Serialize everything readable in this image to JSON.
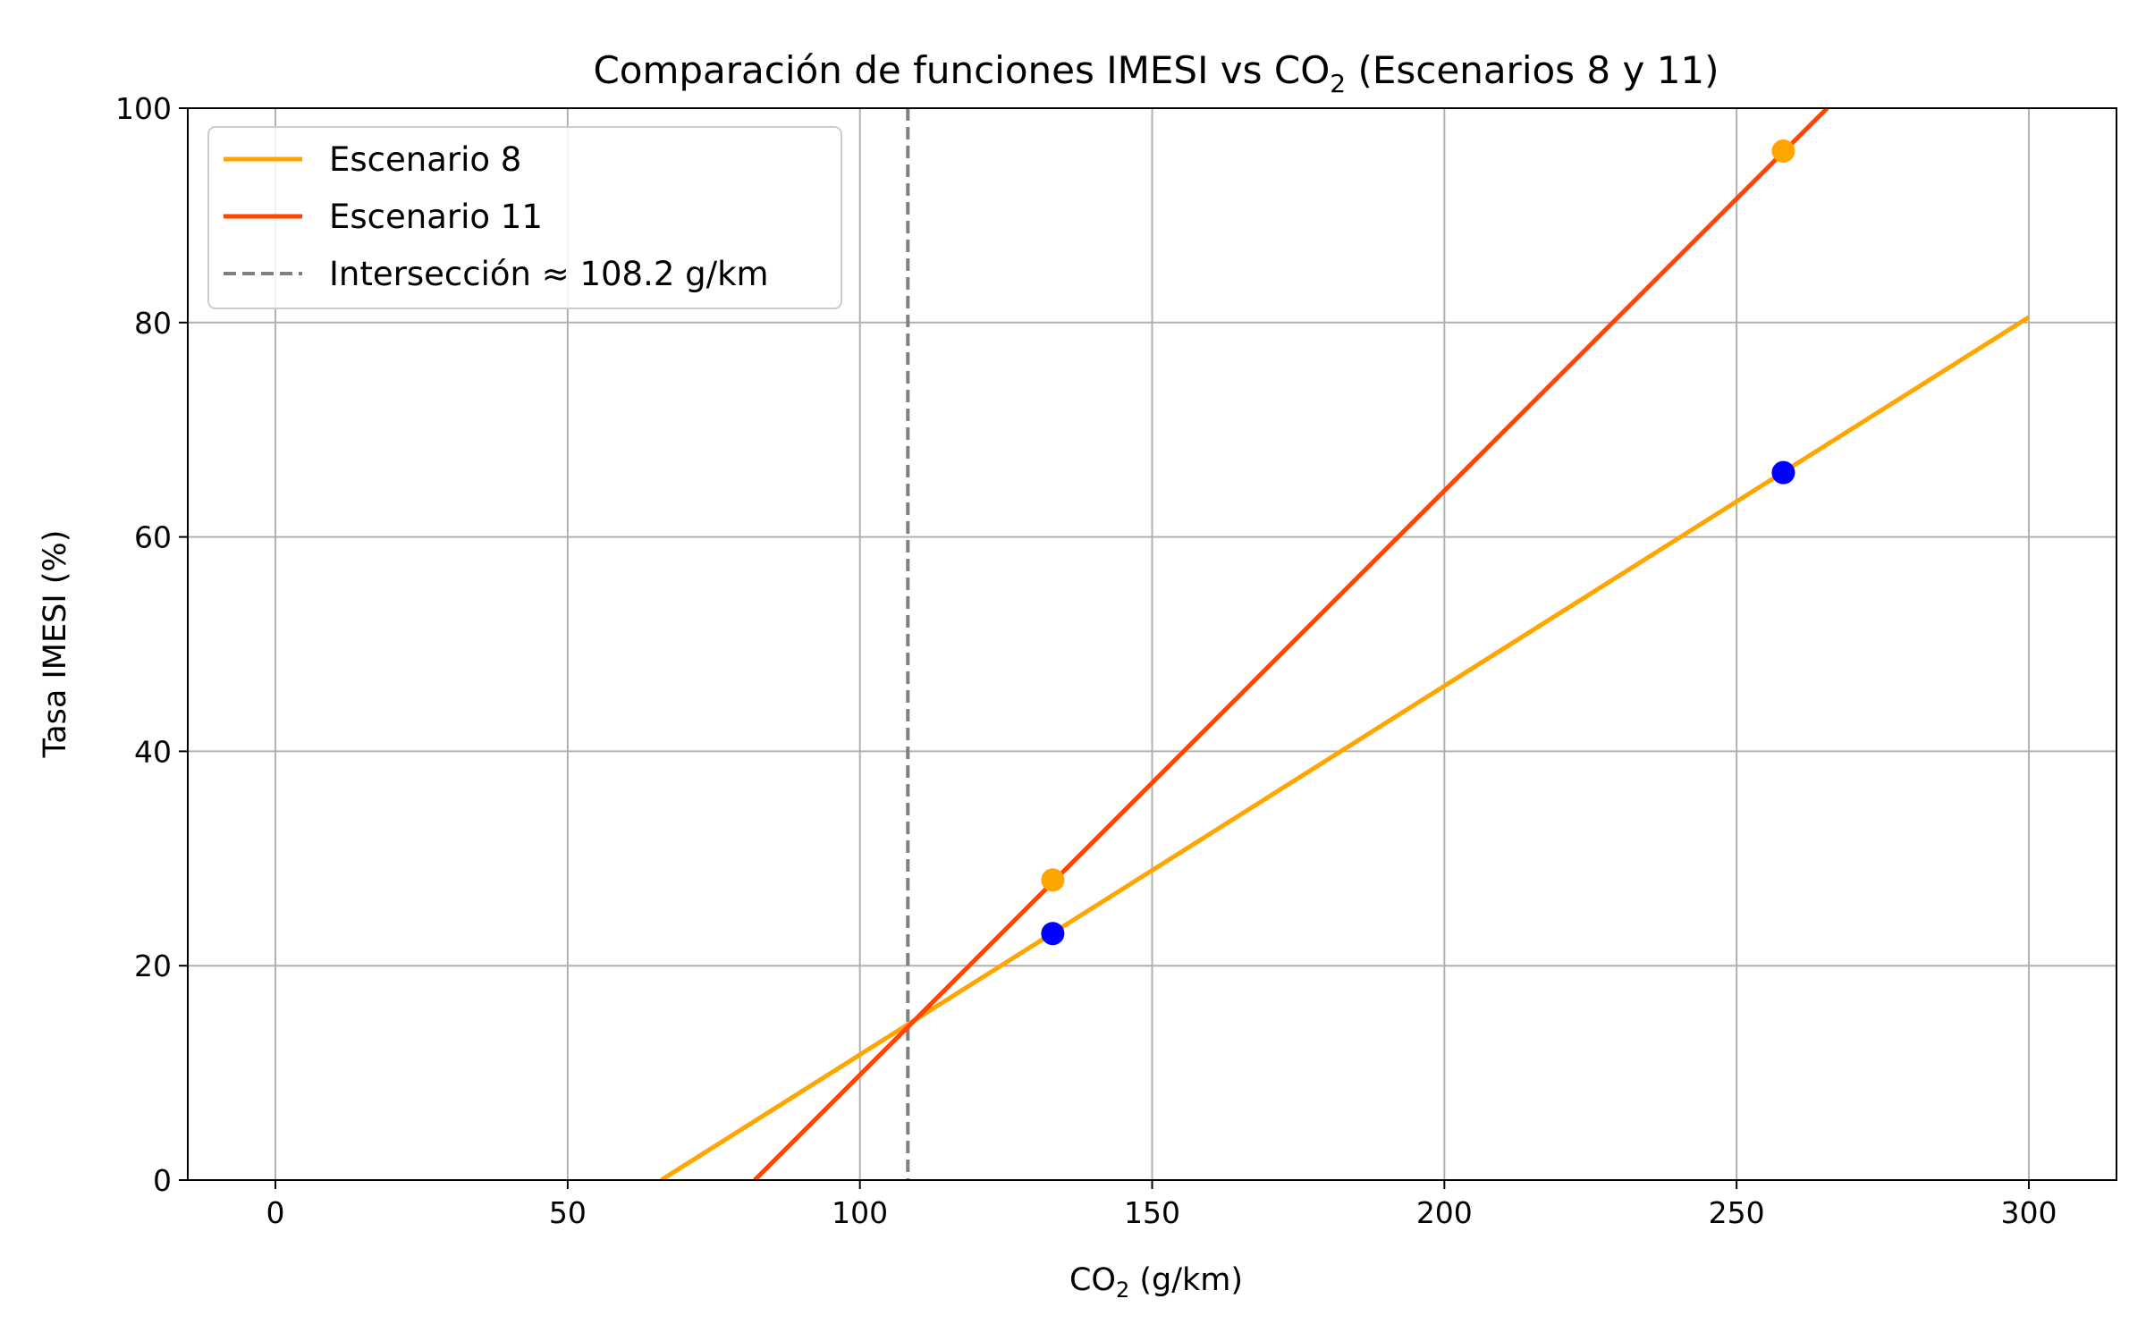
{
  "chart_data": {
    "type": "line",
    "title": {
      "main": "Comparación de funciones IMESI vs CO",
      "sub": "2",
      "tail": " (Escenarios 8 y 11)"
    },
    "xlabel": {
      "main": "CO",
      "sub": "2",
      "tail": " (g/km)"
    },
    "ylabel": "Tasa IMESI (%)",
    "xlim": [
      -15,
      315
    ],
    "ylim": [
      0,
      100
    ],
    "xticks": [
      0,
      50,
      100,
      150,
      200,
      250,
      300
    ],
    "yticks": [
      0,
      20,
      40,
      60,
      80,
      100
    ],
    "grid": true,
    "legend_position": "top-left",
    "series": [
      {
        "name": "Escenario 8",
        "color": "#FFA500",
        "points": [
          [
            66,
            0
          ],
          [
            300,
            80.5
          ]
        ]
      },
      {
        "name": "Escenario 11",
        "color": "#FF4500",
        "points": [
          [
            82,
            0
          ],
          [
            265.5,
            100
          ]
        ]
      }
    ],
    "intersection": {
      "label": "Intersección ≈ 108.2 g/km",
      "x": 108.2,
      "color": "#808080"
    },
    "scatter": [
      {
        "color": "#FFA500",
        "points": [
          [
            133,
            28
          ],
          [
            258,
            96
          ]
        ]
      },
      {
        "color": "#0000FF",
        "points": [
          [
            133,
            23
          ],
          [
            258,
            66
          ]
        ]
      }
    ]
  }
}
